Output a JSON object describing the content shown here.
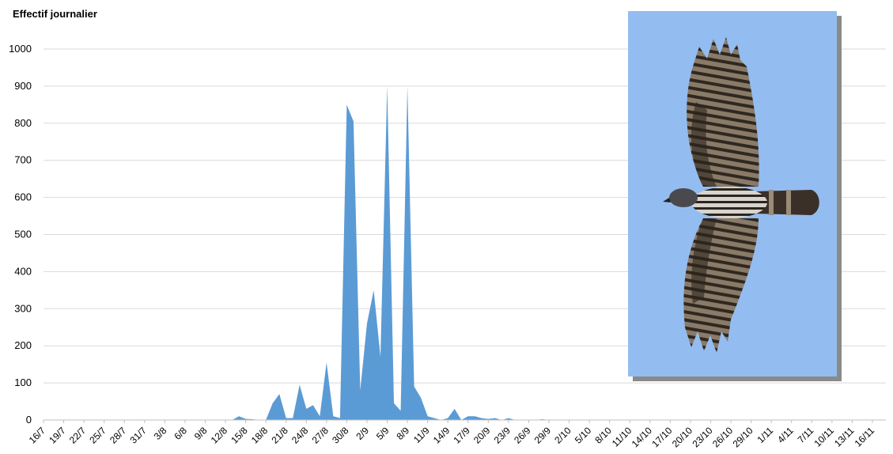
{
  "chart_data": {
    "type": "area",
    "title": "Effectif journalier",
    "xlabel": "",
    "ylabel": "",
    "ylim": [
      0,
      1000
    ],
    "yticks": [
      0,
      100,
      200,
      300,
      400,
      500,
      600,
      700,
      800,
      900,
      1000
    ],
    "grid": true,
    "legend": "none",
    "color": "#5b9bd5",
    "x_tick_labels": [
      "16/7",
      "19/7",
      "22/7",
      "25/7",
      "28/7",
      "31/7",
      "3/8",
      "6/8",
      "9/8",
      "12/8",
      "15/8",
      "18/8",
      "21/8",
      "24/8",
      "27/8",
      "30/8",
      "2/9",
      "5/9",
      "8/9",
      "11/9",
      "14/9",
      "17/9",
      "20/9",
      "23/9",
      "26/9",
      "29/9",
      "2/10",
      "5/10",
      "8/10",
      "11/10",
      "14/10",
      "17/10",
      "20/10",
      "23/10",
      "26/10",
      "29/10",
      "1/11",
      "4/11",
      "7/11",
      "10/11",
      "13/11",
      "16/11"
    ],
    "series_start": "16/7",
    "values": [
      0,
      0,
      0,
      0,
      0,
      0,
      0,
      0,
      0,
      0,
      0,
      0,
      0,
      0,
      0,
      0,
      0,
      0,
      0,
      0,
      0,
      0,
      0,
      0,
      0,
      0,
      0,
      0,
      0,
      10,
      3,
      2,
      0,
      0,
      45,
      70,
      5,
      5,
      95,
      30,
      40,
      10,
      155,
      10,
      5,
      850,
      805,
      80,
      260,
      350,
      170,
      900,
      45,
      25,
      900,
      90,
      60,
      10,
      5,
      0,
      5,
      30,
      0,
      10,
      10,
      5,
      3,
      5,
      0,
      5,
      0,
      0,
      0,
      0,
      2,
      0,
      0,
      0,
      0,
      0,
      0,
      0,
      0,
      0,
      0,
      0,
      0,
      0,
      0,
      0,
      0,
      0,
      0,
      0,
      0,
      0,
      0,
      0,
      0,
      0,
      0,
      0,
      0,
      0,
      0,
      0,
      0,
      0,
      0,
      0,
      0,
      0,
      0,
      0,
      0,
      0,
      0,
      0,
      0,
      0,
      0,
      0,
      0,
      0,
      0,
      0
    ]
  },
  "photo": {
    "subject": "bird-of-prey-photo",
    "background_color": "#93bdf0"
  }
}
